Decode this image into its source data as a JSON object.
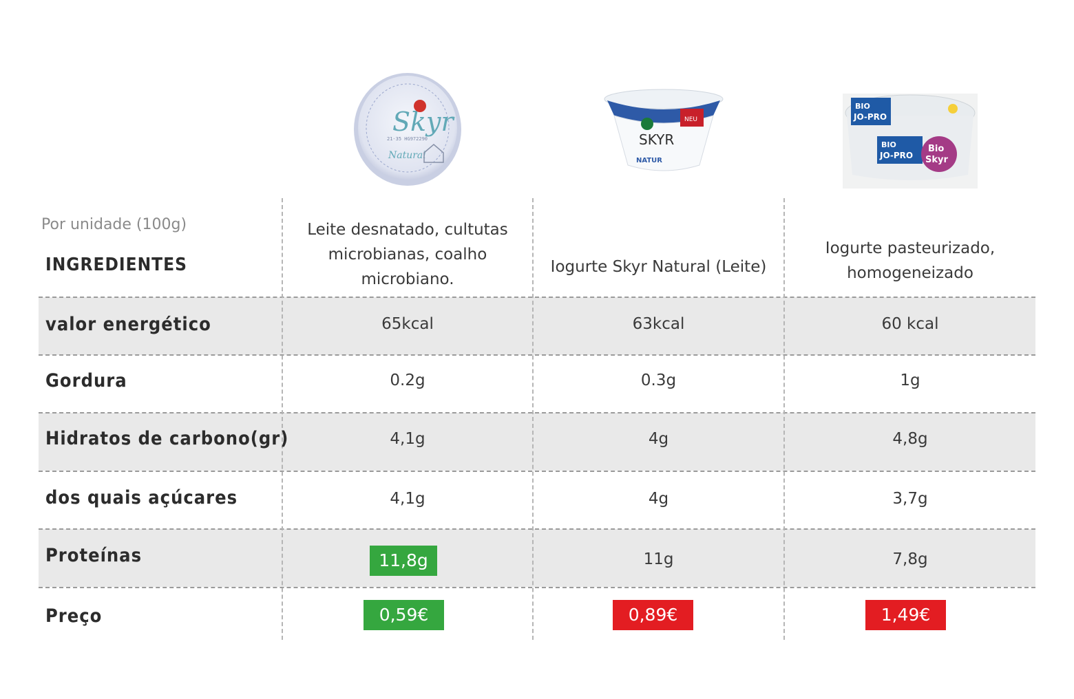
{
  "header": {
    "per_unit": "Por unidade (100g)",
    "ingredients_label": "INGREDIENTES"
  },
  "products": [
    {
      "image_icon": "skyr-milbona-lid-icon",
      "ingredients_lines": [
        "Leite desnatado, cultutas",
        "microbianas, coalho",
        "microbiano."
      ]
    },
    {
      "image_icon": "arla-skyr-cup-icon",
      "ingredients_lines": [
        "Iogurte Skyr Natural (Leite)"
      ]
    },
    {
      "image_icon": "jo-pro-bio-skyr-cup-icon",
      "ingredients_lines": [
        "Iogurte pasteurizado,",
        "homogeneizado"
      ]
    }
  ],
  "rows": [
    {
      "label": "valor energético",
      "values": [
        "65kcal",
        "63kcal",
        "60 kcal"
      ]
    },
    {
      "label": "Gordura",
      "values": [
        "0.2g",
        "0.3g",
        "1g"
      ]
    },
    {
      "label": "Hidratos de carbono(gr)",
      "values": [
        "4,1g",
        "4g",
        "4,8g"
      ]
    },
    {
      "label": "dos quais açúcares",
      "values": [
        "4,1g",
        "4g",
        "3,7g"
      ]
    },
    {
      "label": "Proteínas",
      "values": [
        "11,8g",
        "11g",
        "7,8g"
      ]
    },
    {
      "label": "Preço",
      "values": [
        "0,59€",
        "0,89€",
        "1,49€"
      ]
    }
  ],
  "colors": {
    "highlight_green": "#35a73f",
    "highlight_red": "#e31d22",
    "band_gray": "#e9e9e9"
  }
}
